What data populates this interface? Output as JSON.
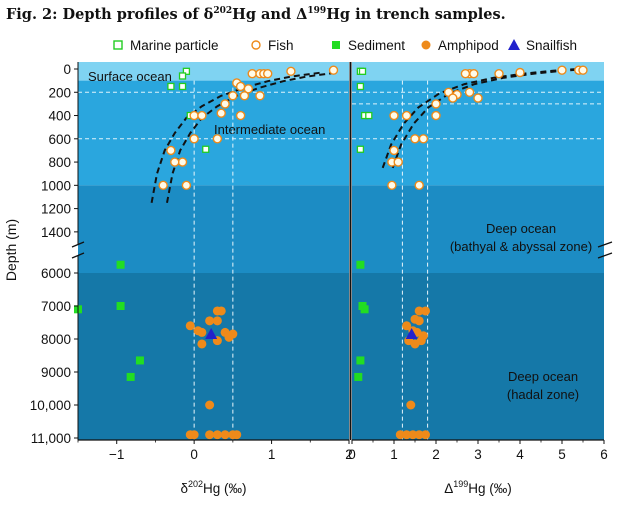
{
  "figure": {
    "title_prefix": "Fig. 2: Depth profiles of δ",
    "title_sup1": "202",
    "title_mid": "Hg and Δ",
    "title_sup2": "199",
    "title_suffix": "Hg in trench samples."
  },
  "chart_data": {
    "type": "scatter",
    "legend": {
      "placement": "top",
      "entries": [
        {
          "label": "Marine particle",
          "marker": "open-square",
          "color": "#22cc22"
        },
        {
          "label": "Fish",
          "marker": "open-circle",
          "color": "#ee8a1a"
        },
        {
          "label": "Sediment",
          "marker": "filled-square",
          "color": "#22dd22"
        },
        {
          "label": "Amphipod",
          "marker": "filled-circle",
          "color": "#ee8a1a"
        },
        {
          "label": "Snailfish",
          "marker": "filled-triangle",
          "color": "#2222cc"
        }
      ]
    },
    "y_axis": {
      "label": "Depth (m)",
      "reversed": true,
      "broken": true,
      "upper_segment": {
        "range": [
          0,
          1500
        ],
        "ticks": [
          "0",
          "200",
          "400",
          "600",
          "800",
          "1000",
          "1200",
          "1400"
        ],
        "tick_values": [
          0,
          200,
          400,
          600,
          800,
          1000,
          1200,
          1400
        ]
      },
      "lower_segment": {
        "range": [
          5500,
          11000
        ],
        "ticks": [
          "6000",
          "7000",
          "8000",
          "9000",
          "10,000",
          "11,000"
        ],
        "tick_values": [
          6000,
          7000,
          8000,
          9000,
          10000,
          11000
        ]
      }
    },
    "zones": [
      {
        "name": "Surface ocean",
        "label": "Surface ocean",
        "depth_range": [
          0,
          100
        ],
        "color": "#7fd3f2"
      },
      {
        "name": "Intermediate ocean",
        "label": "Intermediate ocean",
        "depth_range": [
          100,
          1000
        ],
        "color": "#2aa6de"
      },
      {
        "name": "Deep ocean bathyal abyssal",
        "label_line1": "Deep ocean",
        "label_line2": "(bathyal & abyssal zone)",
        "depth_range": [
          1000,
          6000
        ],
        "color": "#1c8cc4"
      },
      {
        "name": "Deep ocean hadal",
        "label_line1": "Deep ocean",
        "label_line2": "(hadal zone)",
        "depth_range": [
          6000,
          11000
        ],
        "color": "#1578a8"
      }
    ],
    "panels": [
      {
        "id": "d202",
        "xlabel_prefix": "δ",
        "xlabel_sup": "202",
        "xlabel_suffix": "Hg (‰)",
        "xlim": [
          -1.5,
          2.0
        ],
        "xticks": [
          -1,
          0,
          1,
          2
        ],
        "xtick_labels": [
          "−1",
          "0",
          "1",
          "2"
        ],
        "vlines": [
          0.0,
          0.5
        ],
        "hlines_depth": [
          200,
          600
        ],
        "curve": {
          "x": [
            -0.45,
            -0.38,
            -0.28,
            -0.15,
            0.0,
            0.2,
            0.45,
            0.75,
            1.05,
            1.35,
            1.75
          ],
          "depth": [
            1150,
            900,
            700,
            550,
            420,
            320,
            230,
            160,
            105,
            65,
            30
          ]
        },
        "curve_offset": 0.1,
        "marine_particle": [
          [
            -0.1,
            20
          ],
          [
            -0.15,
            60
          ],
          [
            -0.3,
            150
          ],
          [
            -0.15,
            150
          ],
          [
            -0.05,
            400
          ],
          [
            0.15,
            690
          ]
        ],
        "fish": [
          [
            0.75,
            40
          ],
          [
            0.85,
            40
          ],
          [
            0.9,
            40
          ],
          [
            0.95,
            40
          ],
          [
            1.25,
            20
          ],
          [
            1.8,
            10
          ],
          [
            0.55,
            120
          ],
          [
            0.6,
            150
          ],
          [
            0.7,
            170
          ],
          [
            0.5,
            230
          ],
          [
            0.65,
            230
          ],
          [
            0.85,
            230
          ],
          [
            0.4,
            300
          ],
          [
            0.35,
            380
          ],
          [
            0.0,
            400
          ],
          [
            0.1,
            400
          ],
          [
            0.6,
            400
          ],
          [
            0.0,
            600
          ],
          [
            0.3,
            600
          ],
          [
            -0.15,
            800
          ],
          [
            -0.3,
            700
          ],
          [
            -0.25,
            800
          ],
          [
            -0.4,
            1000
          ],
          [
            -0.1,
            1000
          ]
        ],
        "sediment": [
          [
            -0.95,
            5750
          ],
          [
            -1.5,
            7100
          ],
          [
            -0.95,
            7000
          ],
          [
            -0.7,
            8650
          ],
          [
            -0.82,
            9150
          ]
        ],
        "amphipod": [
          [
            0.3,
            7150
          ],
          [
            0.35,
            7150
          ],
          [
            0.2,
            7450
          ],
          [
            0.3,
            7450
          ],
          [
            -0.05,
            7600
          ],
          [
            0.05,
            7750
          ],
          [
            0.1,
            7800
          ],
          [
            0.4,
            7800
          ],
          [
            0.5,
            7850
          ],
          [
            0.1,
            8150
          ],
          [
            0.3,
            8050
          ],
          [
            0.45,
            7950
          ],
          [
            0.2,
            10000
          ],
          [
            -0.05,
            10900
          ],
          [
            0.0,
            10900
          ],
          [
            0.2,
            10900
          ],
          [
            0.3,
            10900
          ],
          [
            0.4,
            10900
          ],
          [
            0.5,
            10900
          ],
          [
            0.55,
            10900
          ]
        ],
        "snailfish": [
          [
            0.22,
            7850
          ]
        ]
      },
      {
        "id": "D199",
        "xlabel_prefix": "Δ",
        "xlabel_sup": "199",
        "xlabel_suffix": "Hg (‰)",
        "xlim": [
          0.0,
          6.0
        ],
        "xticks": [
          0,
          1,
          2,
          3,
          4,
          5,
          6
        ],
        "xtick_labels": [
          "0",
          "1",
          "2",
          "3",
          "4",
          "5",
          "6"
        ],
        "vlines": [
          1.2,
          1.8
        ],
        "hlines_depth": [
          200,
          300,
          600
        ],
        "curve": {
          "x": [
            0.85,
            1.05,
            1.35,
            1.7,
            2.2,
            2.8,
            3.5,
            4.2,
            4.9,
            5.5
          ],
          "depth": [
            850,
            650,
            470,
            330,
            210,
            130,
            75,
            40,
            15,
            0
          ]
        },
        "curve_offset": 0.12,
        "marine_particle": [
          [
            0.2,
            20
          ],
          [
            0.25,
            20
          ],
          [
            0.2,
            150
          ],
          [
            0.3,
            400
          ],
          [
            0.4,
            400
          ],
          [
            0.2,
            690
          ]
        ],
        "fish": [
          [
            2.8,
            40
          ],
          [
            2.9,
            40
          ],
          [
            2.7,
            40
          ],
          [
            3.5,
            40
          ],
          [
            4.0,
            30
          ],
          [
            5.0,
            10
          ],
          [
            5.4,
            10
          ],
          [
            5.5,
            10
          ],
          [
            2.3,
            200
          ],
          [
            2.5,
            220
          ],
          [
            2.8,
            200
          ],
          [
            2.4,
            250
          ],
          [
            2.0,
            300
          ],
          [
            3.0,
            250
          ],
          [
            1.0,
            400
          ],
          [
            1.3,
            400
          ],
          [
            2.0,
            400
          ],
          [
            1.5,
            600
          ],
          [
            1.7,
            600
          ],
          [
            1.0,
            700
          ],
          [
            0.95,
            800
          ],
          [
            1.1,
            800
          ],
          [
            0.95,
            1000
          ],
          [
            1.6,
            1000
          ]
        ],
        "sediment": [
          [
            0.2,
            5750
          ],
          [
            0.25,
            7000
          ],
          [
            0.3,
            7100
          ],
          [
            0.2,
            8650
          ],
          [
            0.15,
            9150
          ]
        ],
        "amphipod": [
          [
            1.6,
            7150
          ],
          [
            1.75,
            7150
          ],
          [
            1.5,
            7400
          ],
          [
            1.6,
            7450
          ],
          [
            1.3,
            7600
          ],
          [
            1.45,
            7750
          ],
          [
            1.55,
            7800
          ],
          [
            1.7,
            7900
          ],
          [
            1.35,
            8050
          ],
          [
            1.65,
            8050
          ],
          [
            1.5,
            8150
          ],
          [
            1.4,
            10000
          ],
          [
            1.15,
            10900
          ],
          [
            1.3,
            10900
          ],
          [
            1.45,
            10900
          ],
          [
            1.6,
            10900
          ],
          [
            1.75,
            10900
          ]
        ],
        "snailfish": [
          [
            1.42,
            7850
          ]
        ]
      }
    ]
  }
}
